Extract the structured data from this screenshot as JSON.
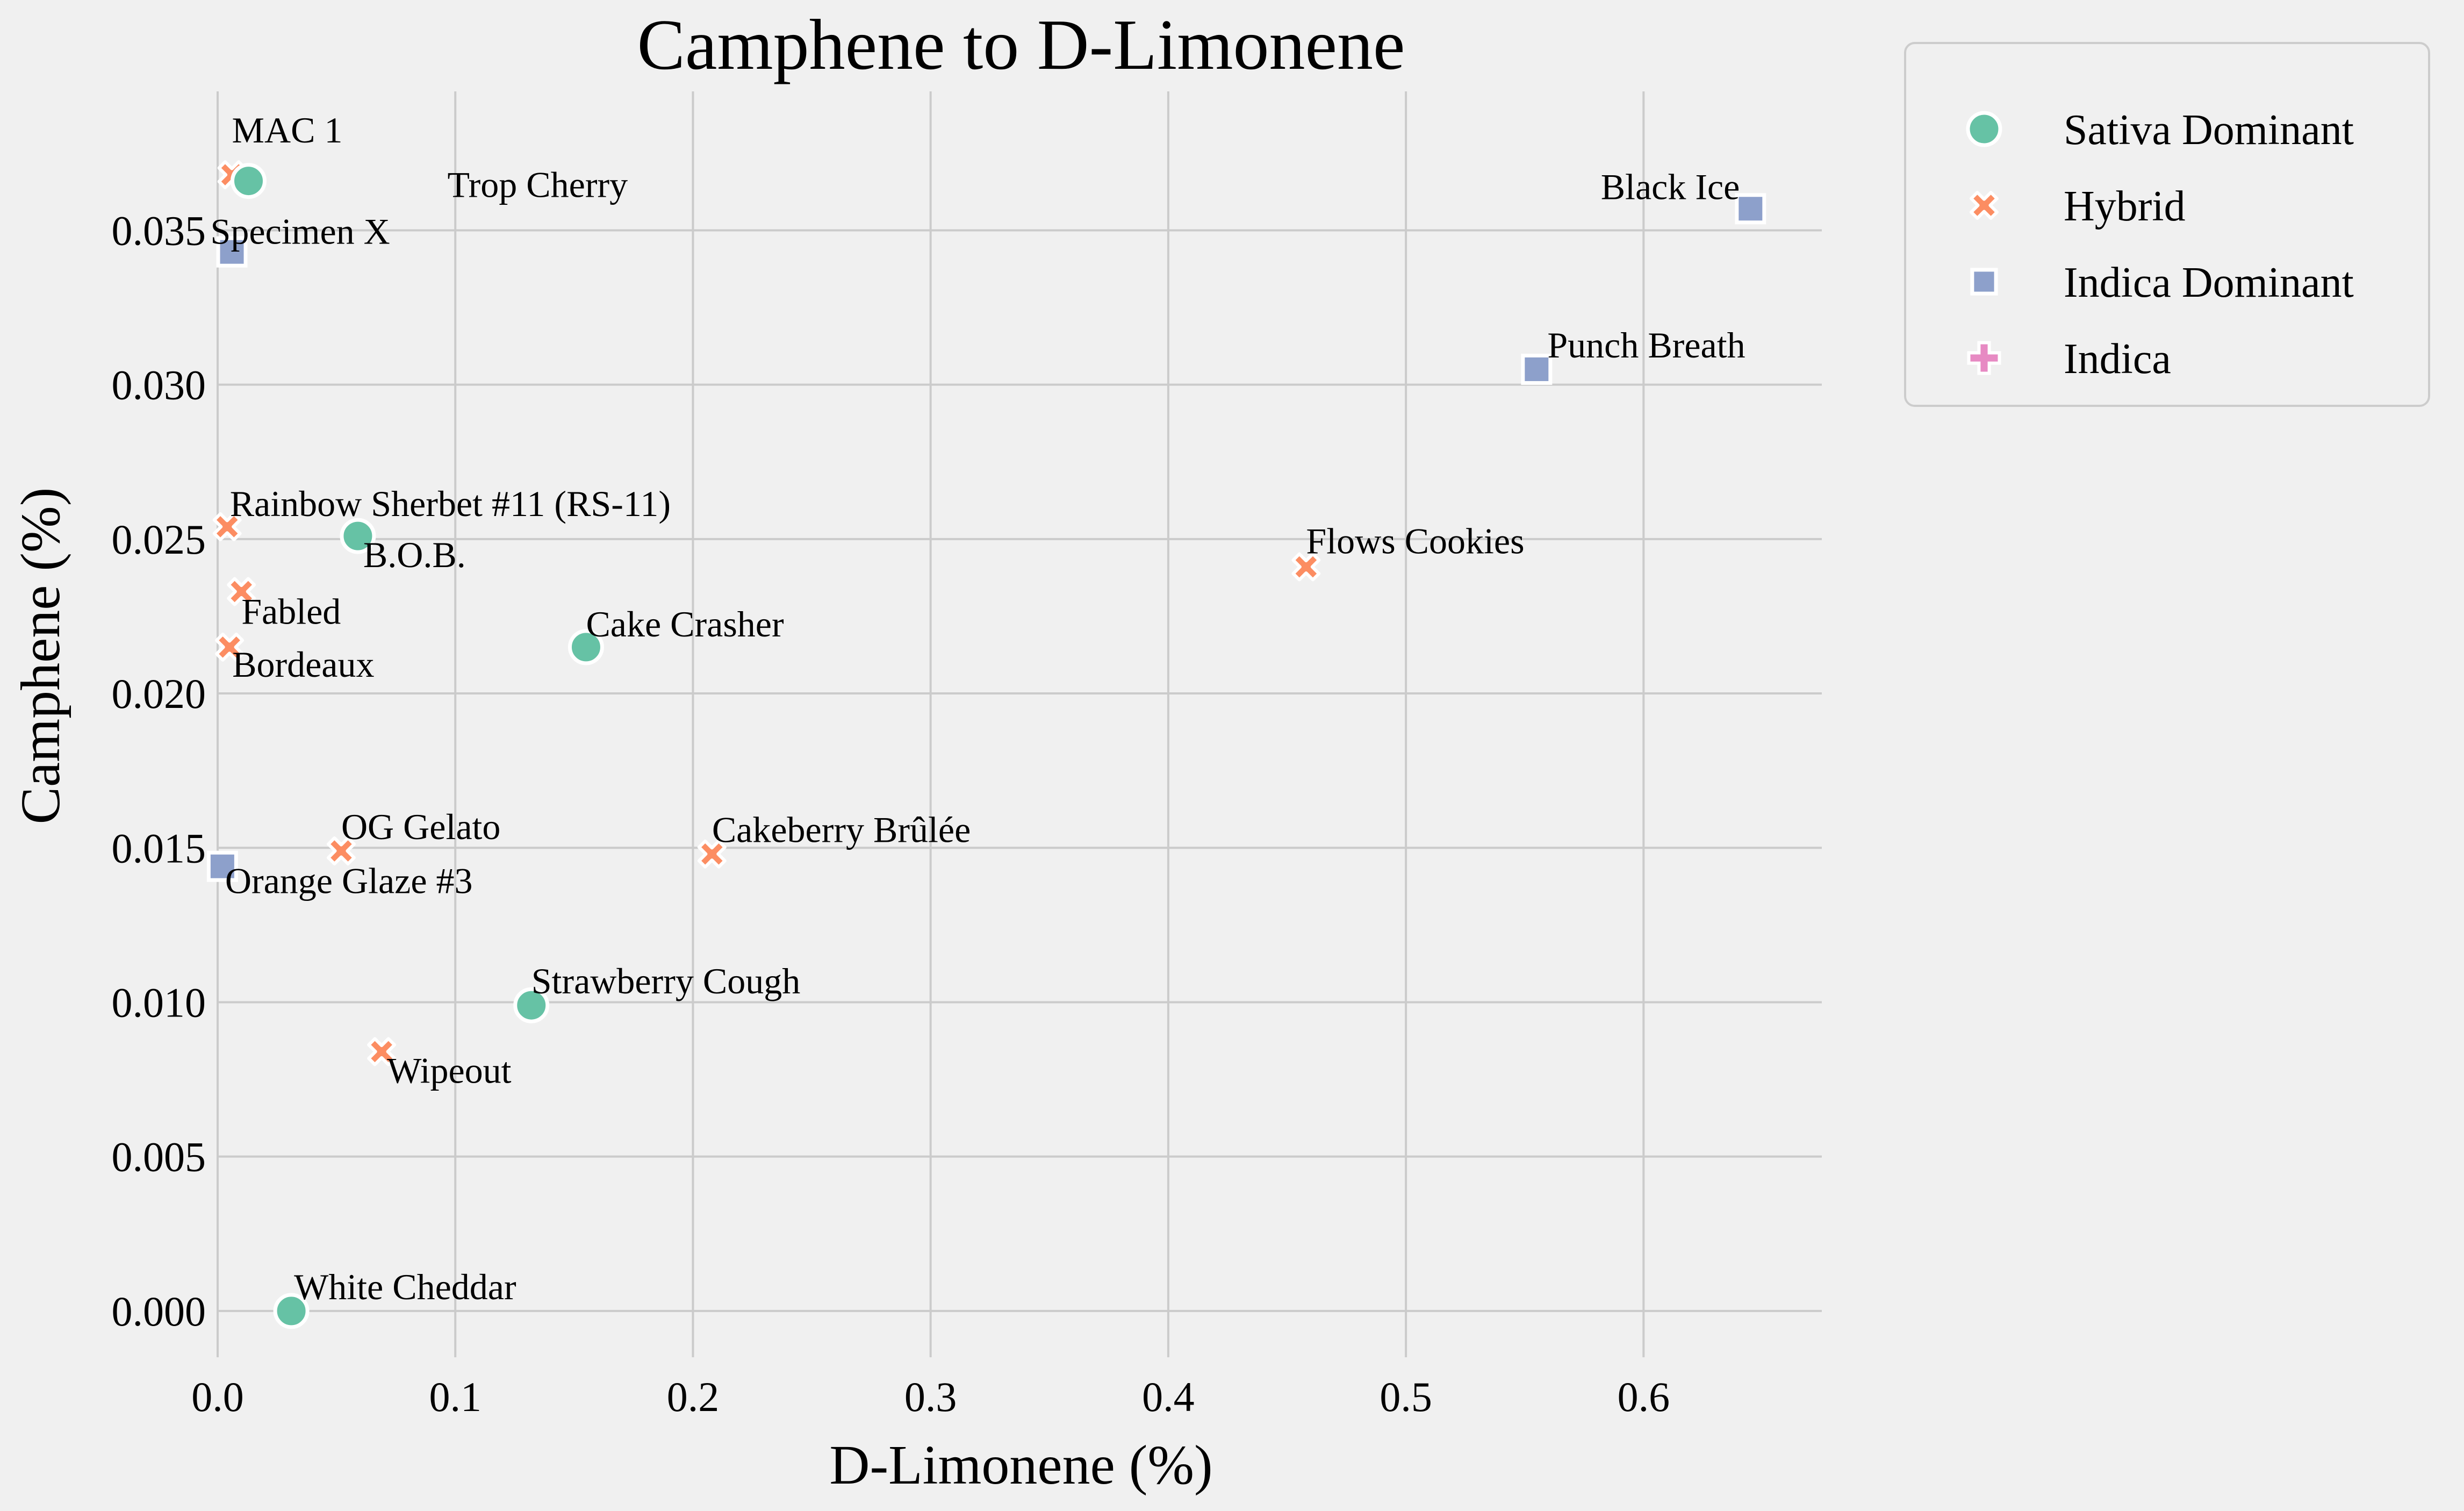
{
  "chart_data": {
    "type": "scatter",
    "title": "Camphene to D-Limonene",
    "xlabel": "D-Limonene (%)",
    "ylabel": "Camphene (%)",
    "xlim": [
      0,
      0.675
    ],
    "ylim": [
      -0.0015,
      0.0395
    ],
    "xticks": [
      0.0,
      0.1,
      0.2,
      0.3,
      0.4,
      0.5,
      0.6
    ],
    "xtick_labels": [
      "0.0",
      "0.1",
      "0.2",
      "0.3",
      "0.4",
      "0.5",
      "0.6"
    ],
    "yticks": [
      0.0,
      0.005,
      0.01,
      0.015,
      0.02,
      0.025,
      0.03,
      0.035
    ],
    "ytick_labels": [
      "0.000",
      "0.005",
      "0.010",
      "0.015",
      "0.020",
      "0.025",
      "0.030",
      "0.035"
    ],
    "grid": true,
    "legend_position": "outside-top-right",
    "series": [
      {
        "name": "Sativa Dominant",
        "marker": "circle",
        "color": "#66c2a5"
      },
      {
        "name": "Hybrid",
        "marker": "x",
        "color": "#fc8d62"
      },
      {
        "name": "Indica Dominant",
        "marker": "square",
        "color": "#8da0cb"
      },
      {
        "name": "Indica",
        "marker": "plus",
        "color": "#e78ac3"
      }
    ],
    "points": [
      {
        "label": "MAC 1",
        "x": 0.006,
        "y": 0.0368,
        "series": 1
      },
      {
        "label": "Trop Cherry",
        "x": 0.013,
        "y": 0.0366,
        "series": 0
      },
      {
        "label": "Specimen X",
        "x": 0.006,
        "y": 0.0343,
        "series": 2
      },
      {
        "label": "Black Ice",
        "x": 0.645,
        "y": 0.0357,
        "series": 2
      },
      {
        "label": "Punch Breath",
        "x": 0.555,
        "y": 0.0305,
        "series": 2
      },
      {
        "label": "Rainbow Sherbet #11 (RS-11)",
        "x": 0.004,
        "y": 0.0254,
        "series": 1
      },
      {
        "label": "B.O.B.",
        "x": 0.059,
        "y": 0.0251,
        "series": 0
      },
      {
        "label": "Fabled",
        "x": 0.01,
        "y": 0.0233,
        "series": 1
      },
      {
        "label": "Bordeaux",
        "x": 0.005,
        "y": 0.0215,
        "series": 1
      },
      {
        "label": "Flows Cookies",
        "x": 0.458,
        "y": 0.0241,
        "series": 1
      },
      {
        "label": "Cake Crasher",
        "x": 0.155,
        "y": 0.0215,
        "series": 0
      },
      {
        "label": "OG Gelato",
        "x": 0.052,
        "y": 0.0149,
        "series": 1
      },
      {
        "label": "Orange Glaze #3",
        "x": 0.002,
        "y": 0.0144,
        "series": 2
      },
      {
        "label": "Cakeberry Brûlée",
        "x": 0.208,
        "y": 0.0148,
        "series": 1
      },
      {
        "label": "Strawberry Cough",
        "x": 0.132,
        "y": 0.0099,
        "series": 0
      },
      {
        "label": "Wipeout",
        "x": 0.069,
        "y": 0.0084,
        "series": 1
      },
      {
        "label": "White Cheddar",
        "x": 0.031,
        "y": 0.0,
        "series": 0
      }
    ]
  }
}
